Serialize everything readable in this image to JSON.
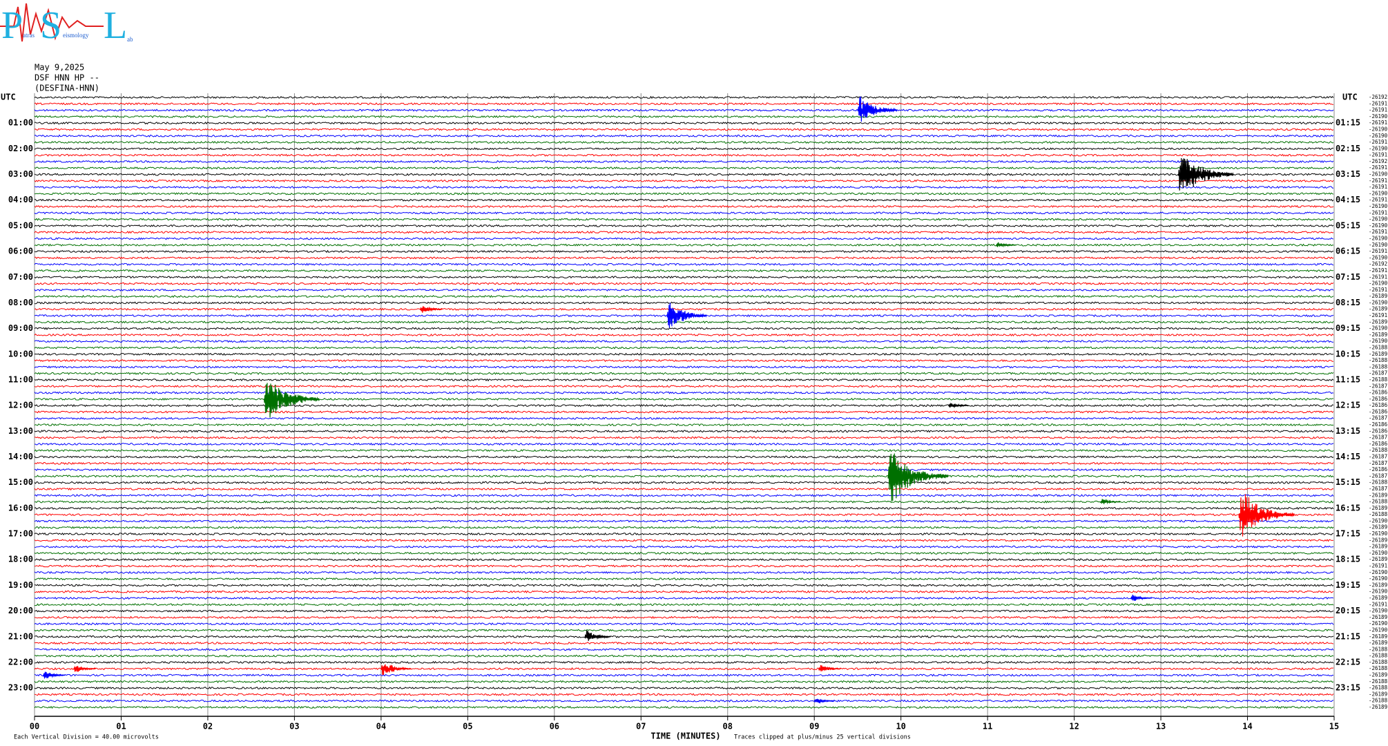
{
  "logo": {
    "words": [
      [
        "P",
        "atras"
      ],
      [
        "S",
        "eismology"
      ],
      [
        "L",
        "ab"
      ]
    ]
  },
  "header": {
    "date": "May 9,2025",
    "station": "DSF HNN HP --",
    "name": "(DESFINA-HNN)"
  },
  "chart_data": {
    "type": "helicorder",
    "colors": [
      "#000000",
      "#ff0000",
      "#0000ff",
      "#007000"
    ],
    "left_labels": [
      "UTC",
      "01:00",
      "02:00",
      "03:00",
      "04:00",
      "05:00",
      "06:00",
      "07:00",
      "08:00",
      "09:00",
      "10:00",
      "11:00",
      "12:00",
      "13:00",
      "14:00",
      "15:00",
      "16:00",
      "17:00",
      "18:00",
      "19:00",
      "20:00",
      "21:00",
      "22:00",
      "23:00"
    ],
    "right_labels": [
      "UTC",
      "01:15",
      "02:15",
      "03:15",
      "04:15",
      "05:15",
      "06:15",
      "07:15",
      "08:15",
      "09:15",
      "10:15",
      "11:15",
      "12:15",
      "13:15",
      "14:15",
      "15:15",
      "16:15",
      "17:15",
      "18:15",
      "19:15",
      "20:15",
      "21:15",
      "22:15",
      "23:15"
    ],
    "offsets": [
      -26192,
      -26191,
      -26191,
      -26190,
      -26191,
      -26190,
      -26190,
      -26191,
      -26190,
      -26191,
      -26192,
      -26191,
      -26190,
      -26191,
      -26191,
      -26190,
      -26191,
      -26190,
      -26191,
      -26190,
      -26190,
      -26191,
      -26190,
      -26190,
      -26191,
      -26190,
      -26192,
      -26191,
      -26191,
      -26190,
      -26191,
      -26189,
      -26190,
      -26189,
      -26191,
      -26189,
      -26190,
      -26189,
      -26190,
      -26188,
      -26189,
      -26188,
      -26188,
      -26187,
      -26188,
      -26187,
      -26186,
      -26186,
      -26186,
      -26186,
      -26187,
      -26186,
      -26186,
      -26187,
      -26186,
      -26188,
      -26187,
      -26187,
      -26186,
      -26187,
      -26188,
      -26187,
      -26189,
      -26188,
      -26189,
      -26188,
      -26190,
      -26189,
      -26190,
      -26189,
      -26189,
      -26190,
      -26189,
      -26191,
      -26190,
      -26190,
      -26189,
      -26190,
      -26189,
      -26191,
      -26190,
      -26189,
      -26190,
      -26190,
      -26189,
      -26189,
      -26188,
      -26188,
      -26188,
      -26188,
      -26189,
      -26188,
      -26188,
      -26189,
      -26188,
      -26189
    ],
    "events": [
      {
        "row": 2,
        "minute": 9.5,
        "amplitude": 25
      },
      {
        "row": 12,
        "minute": 13.2,
        "amplitude": 40
      },
      {
        "row": 23,
        "minute": 11.1,
        "amplitude": 6
      },
      {
        "row": 33,
        "minute": 4.45,
        "amplitude": 8
      },
      {
        "row": 34,
        "minute": 7.3,
        "amplitude": 25
      },
      {
        "row": 47,
        "minute": 2.65,
        "amplitude": 40
      },
      {
        "row": 48,
        "minute": 10.55,
        "amplitude": 6
      },
      {
        "row": 59,
        "minute": 9.85,
        "amplitude": 45
      },
      {
        "row": 63,
        "minute": 12.3,
        "amplitude": 6
      },
      {
        "row": 65,
        "minute": 13.9,
        "amplitude": 40
      },
      {
        "row": 78,
        "minute": 12.65,
        "amplitude": 7
      },
      {
        "row": 84,
        "minute": 6.35,
        "amplitude": 12
      },
      {
        "row": 89,
        "minute": 0.45,
        "amplitude": 8
      },
      {
        "row": 89,
        "minute": 4.0,
        "amplitude": 15
      },
      {
        "row": 89,
        "minute": 9.05,
        "amplitude": 8
      },
      {
        "row": 90,
        "minute": 0.1,
        "amplitude": 8
      },
      {
        "row": 94,
        "minute": 9.0,
        "amplitude": 6
      }
    ],
    "xlim": [
      0,
      15
    ],
    "xticks": [
      {
        "value": 0,
        "label": "00"
      },
      {
        "value": 1,
        "label": "01"
      },
      {
        "value": 2,
        "label": "02"
      },
      {
        "value": 3,
        "label": "03"
      },
      {
        "value": 4,
        "label": "04"
      },
      {
        "value": 5,
        "label": "05"
      },
      {
        "value": 6,
        "label": "06"
      },
      {
        "value": 7,
        "label": "07"
      },
      {
        "value": 8,
        "label": "08"
      },
      {
        "value": 9,
        "label": "09"
      },
      10,
      11,
      12,
      13,
      14,
      15
    ],
    "grid": true,
    "xlabel": "TIME (MINUTES)",
    "scale_note": "Each Vertical Division =   40.00 microvolts",
    "clip_note": "Traces clipped at plus/minus 25 vertical divisions"
  }
}
